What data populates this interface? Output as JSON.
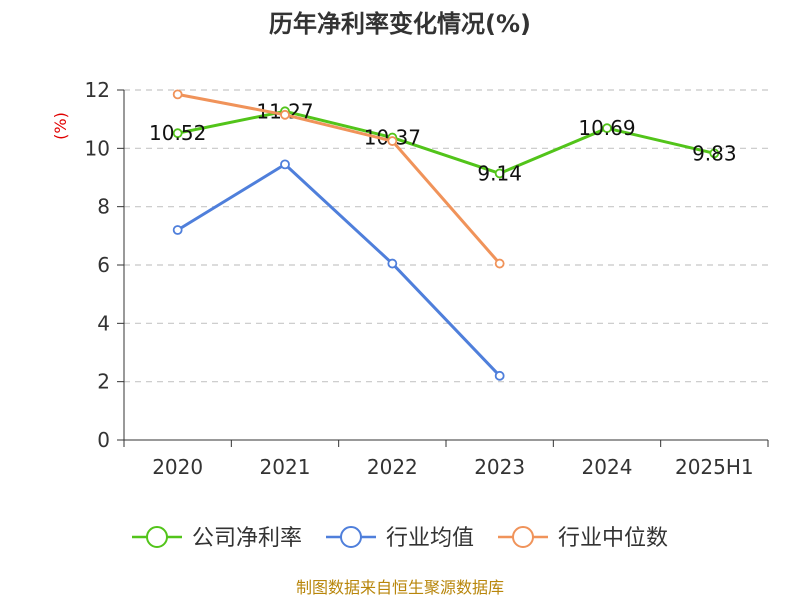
{
  "chart_data": {
    "type": "line",
    "title": "历年净利率变化情况(%)",
    "ylabel": "(%)",
    "xlabel": "",
    "categories": [
      "2020",
      "2021",
      "2022",
      "2023",
      "2024",
      "2025H1"
    ],
    "ylim": [
      0,
      12
    ],
    "yticks": [
      0,
      2,
      4,
      6,
      8,
      10,
      12
    ],
    "grid": true,
    "legend_position": "bottom",
    "series": [
      {
        "name": "公司净利率",
        "color": "#52c41a",
        "values": [
          10.52,
          11.27,
          10.37,
          9.14,
          10.69,
          9.83
        ],
        "labels": [
          "10.52",
          "11.27",
          "10.37",
          "9.14",
          "10.69",
          "9.83"
        ]
      },
      {
        "name": "行业均值",
        "color": "#4f7fdb",
        "values": [
          7.2,
          9.45,
          6.05,
          2.2,
          null,
          null
        ]
      },
      {
        "name": "行业中位数",
        "color": "#f0935a",
        "values": [
          11.85,
          11.15,
          10.25,
          6.05,
          null,
          null
        ]
      }
    ]
  },
  "footer": {
    "source": "制图数据来自恒生聚源数据库"
  }
}
